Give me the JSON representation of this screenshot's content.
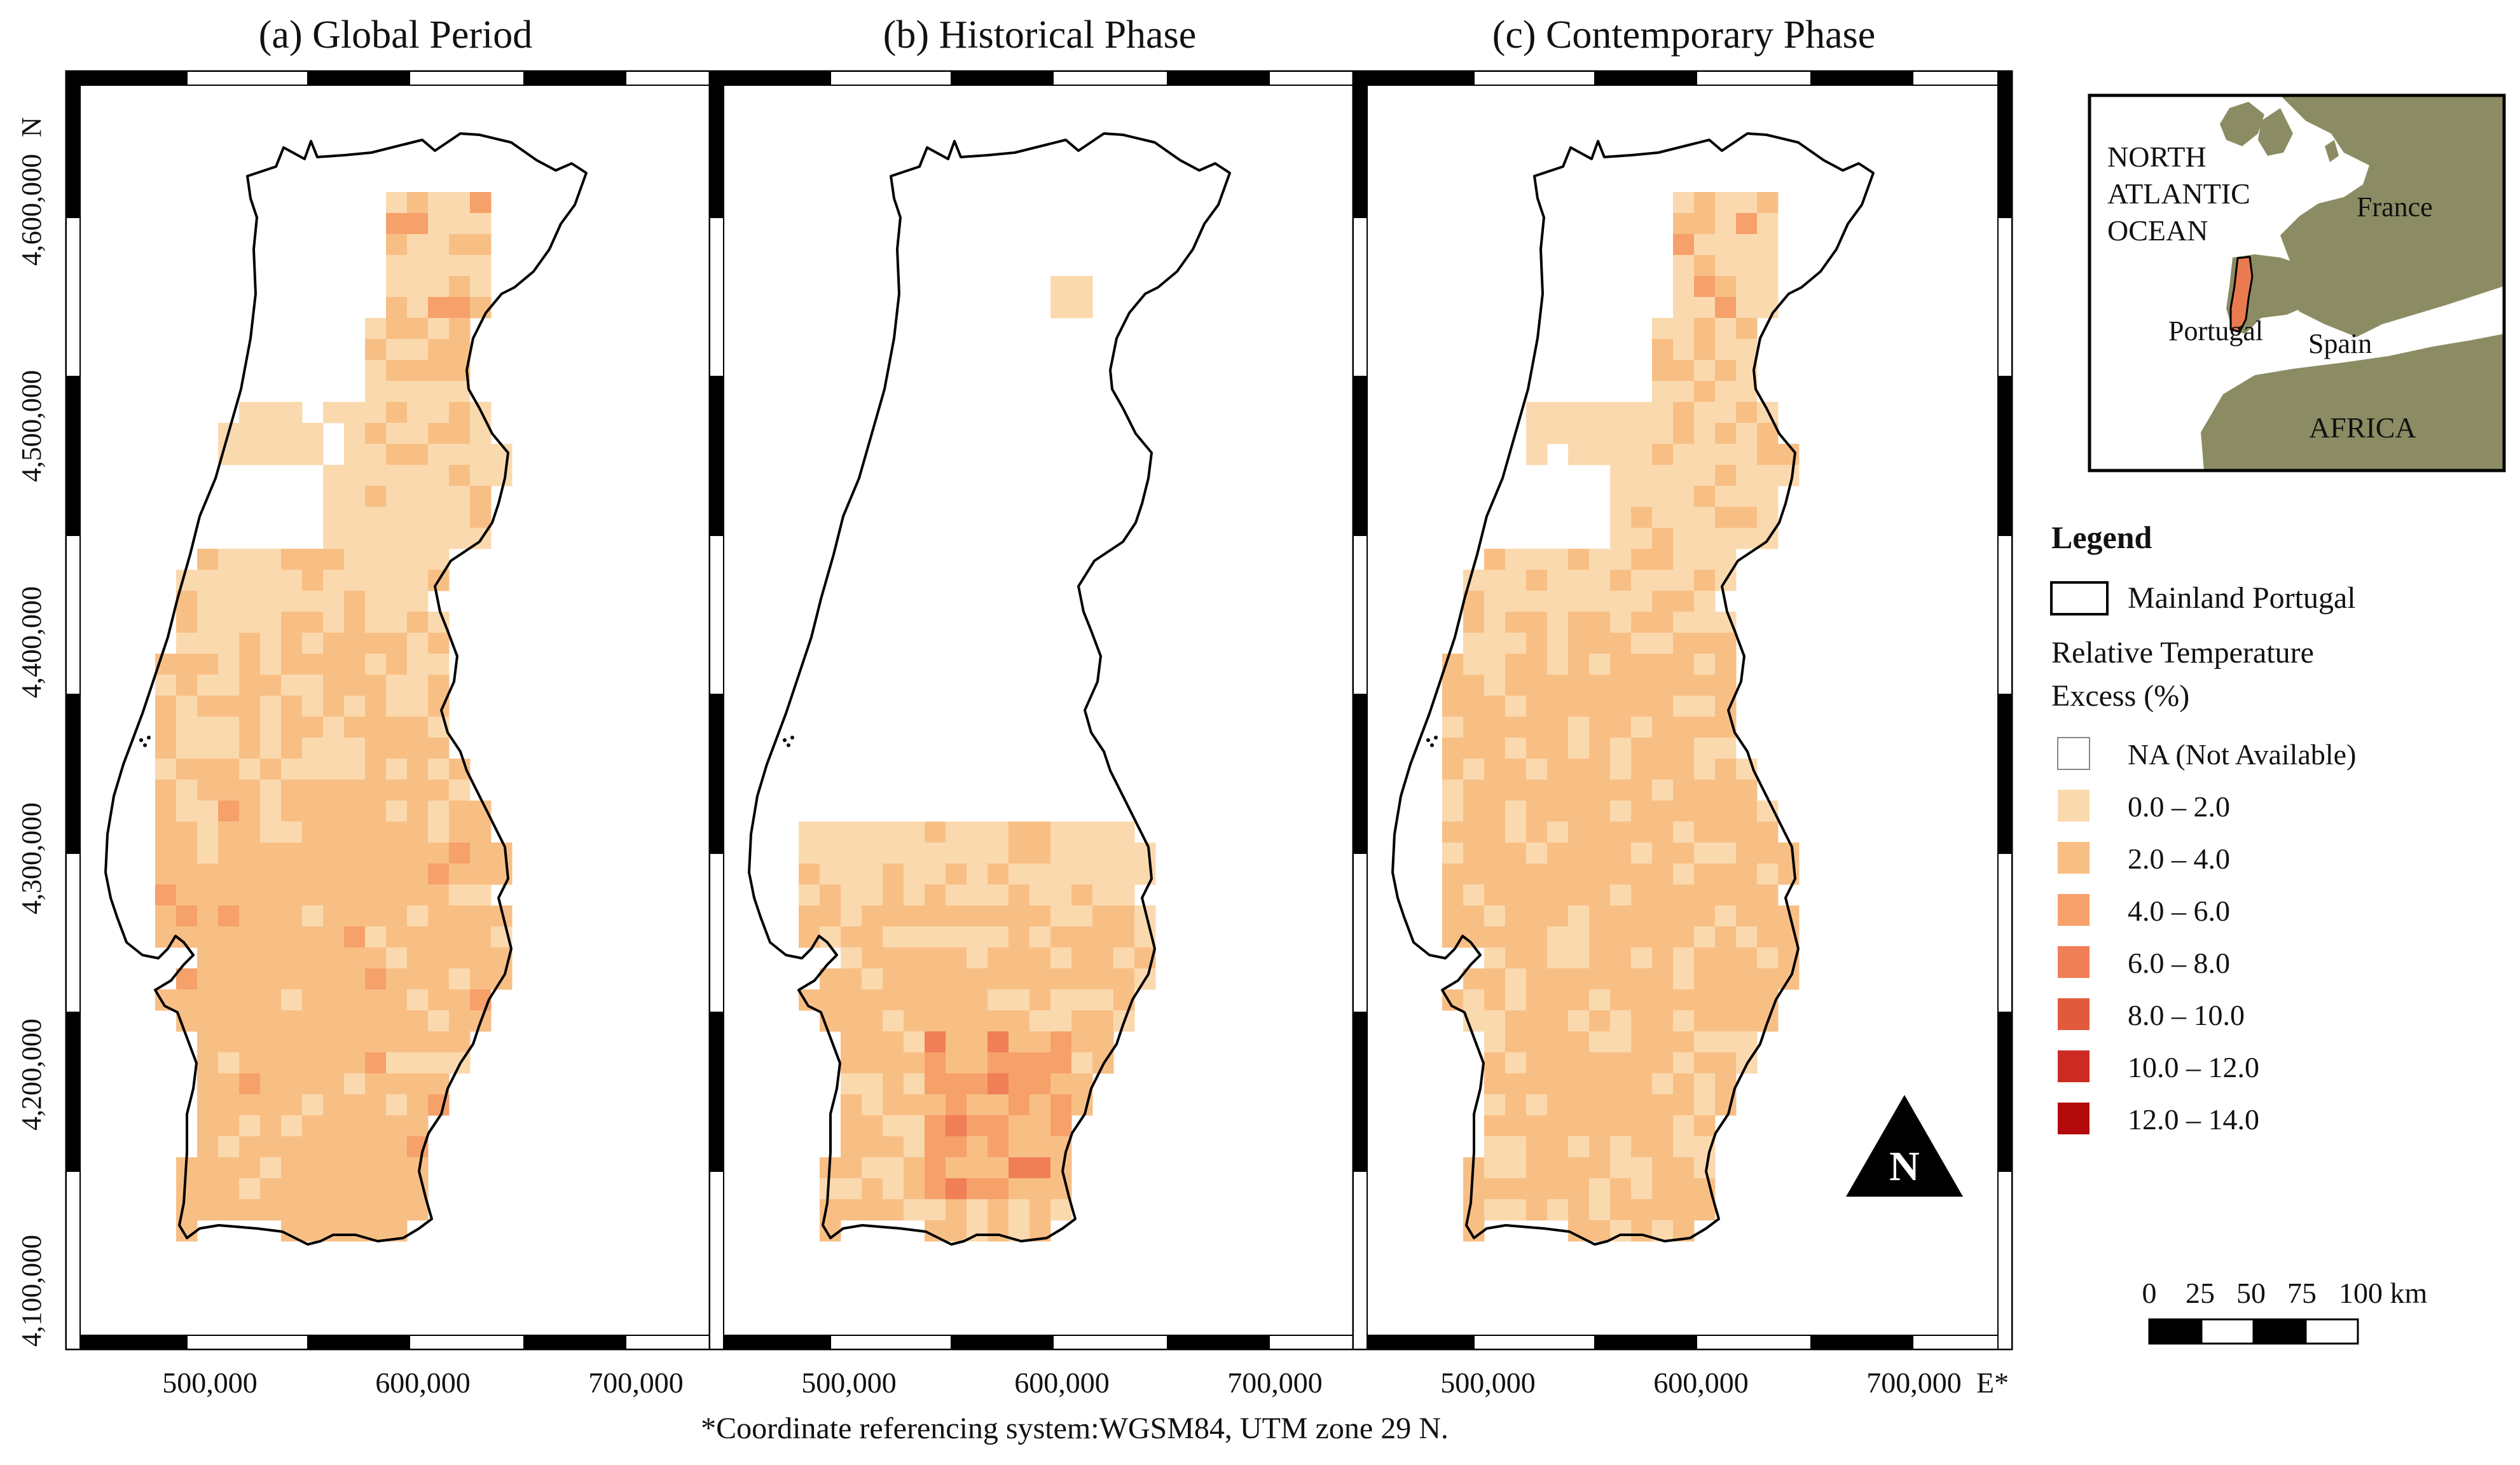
{
  "panels": [
    {
      "id": "a",
      "title": "(a) Global Period"
    },
    {
      "id": "b",
      "title": "(b) Historical Phase"
    },
    {
      "id": "c",
      "title": "(c) Contemporary Phase"
    }
  ],
  "axes": {
    "y_ticks": [
      "4,100,000",
      "4,200,000",
      "4,300,000",
      "4,400,000",
      "4,500,000",
      "4,600,000"
    ],
    "y_unit": "N",
    "x_ticks": [
      "500,000",
      "600,000",
      "700,000"
    ],
    "x_unit": "E*"
  },
  "footnote": "*Coordinate referencing system:WGSM84, UTM zone 29 N.",
  "inset": {
    "labels": {
      "ocean": [
        "NORTH",
        "ATLANTIC",
        "OCEAN"
      ],
      "france": "France",
      "portugal": "Portugal",
      "spain": "Spain",
      "africa": "AFRICA"
    },
    "colors": {
      "land": "#8c8c64",
      "portugal": "#e97a4f",
      "sea": "#ffffff"
    }
  },
  "legend": {
    "title": "Legend",
    "boundary_label": "Mainland Portugal",
    "variable_label": [
      "Relative Temperature",
      "Excess (%)"
    ],
    "classes": [
      {
        "label": "NA (Not Available)",
        "color": "#ffffff"
      },
      {
        "label": "0.0 – 2.0",
        "color": "#fbd9ae"
      },
      {
        "label": "2.0 – 4.0",
        "color": "#f8bf85"
      },
      {
        "label": "4.0 – 6.0",
        "color": "#f6a06a"
      },
      {
        "label": "6.0 – 8.0",
        "color": "#f07f57"
      },
      {
        "label": "8.0 – 10.0",
        "color": "#e25a3c"
      },
      {
        "label": "10.0 – 12.0",
        "color": "#cc2b22"
      },
      {
        "label": "12.0 – 14.0",
        "color": "#b20a0a"
      }
    ]
  },
  "north_arrow": {
    "label": "N"
  },
  "scale_bar": {
    "labels": [
      "0",
      "25",
      "50",
      "75",
      "100 km"
    ]
  }
}
